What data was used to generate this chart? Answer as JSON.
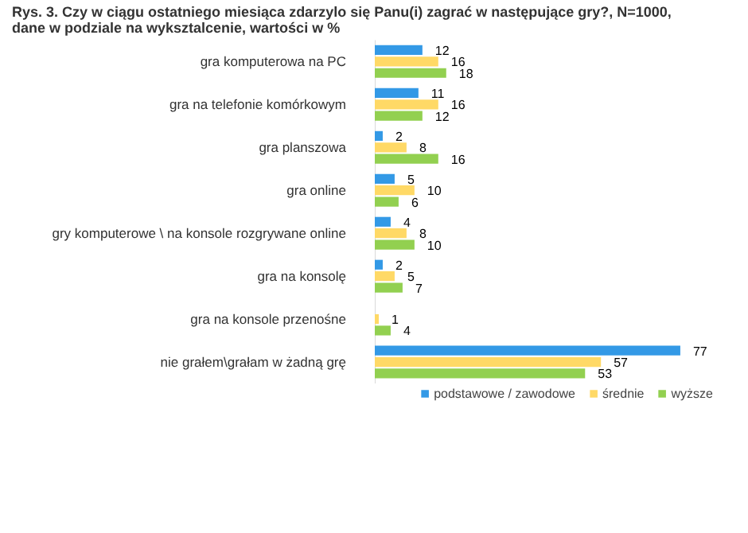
{
  "chart_data": {
    "type": "bar",
    "orientation": "horizontal",
    "title": "Rys. 3. Czy w ciągu ostatniego miesiąca zdarzylo się Panu(i) zagrać w następujące gry?, N=1000,\ndane w podziale na wyksztalcenie, wartości w %",
    "categories": [
      "gra komputerowa na PC",
      "gra na telefonie komórkowym",
      "gra planszowa",
      "gra online",
      "gry komputerowe \\ na konsole rozgrywane online",
      "gra na konsolę",
      "gra na konsole przenośne",
      "nie grałem\\grałam w żadną grę"
    ],
    "series": [
      {
        "name": "podstawowe / zawodowe",
        "color": "#3399e6",
        "values": [
          12,
          11,
          2,
          5,
          4,
          2,
          null,
          77
        ]
      },
      {
        "name": "średnie",
        "color": "#ffd966",
        "values": [
          16,
          16,
          8,
          10,
          8,
          5,
          1,
          57
        ]
      },
      {
        "name": "wyższe",
        "color": "#92d050",
        "values": [
          18,
          12,
          16,
          6,
          10,
          7,
          4,
          53
        ]
      }
    ],
    "data_labels": true,
    "legend": "bottom",
    "grid": false
  }
}
